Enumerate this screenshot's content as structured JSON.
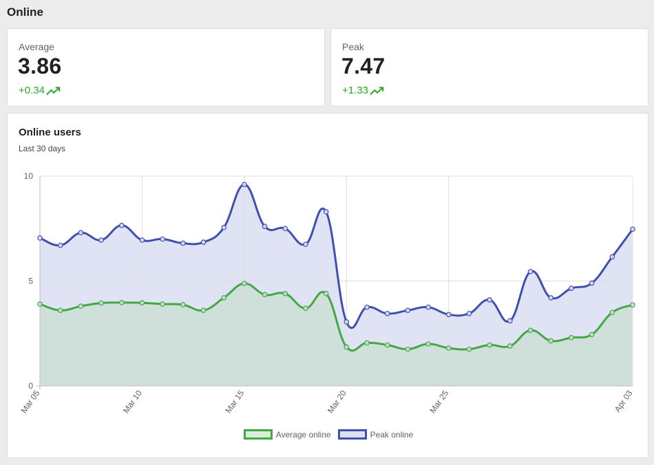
{
  "page": {
    "title": "Online"
  },
  "stats": [
    {
      "label": "Average",
      "value": "3.86",
      "delta": "+0.34",
      "trend_icon": "trending-up-icon"
    },
    {
      "label": "Peak",
      "value": "7.47",
      "delta": "+1.33",
      "trend_icon": "trending-up-icon"
    }
  ],
  "colors": {
    "average_line": "#43a843",
    "average_fill": "#cfdfd9",
    "peak_line": "#3f4fb0",
    "peak_fill": "#e0e3f3",
    "positive": "#27a827"
  },
  "chart": {
    "title": "Online users",
    "subtitle": "Last 30 days"
  },
  "chart_data": {
    "type": "area",
    "x_tick_labels": [
      "Mar 05",
      "Mar 10",
      "Mar 15",
      "Mar 20",
      "Mar 25",
      "Apr 03"
    ],
    "x_tick_index": [
      0,
      5,
      10,
      15,
      20,
      29
    ],
    "x": [
      "Mar 05",
      "Mar 06",
      "Mar 07",
      "Mar 08",
      "Mar 09",
      "Mar 10",
      "Mar 11",
      "Mar 12",
      "Mar 13",
      "Mar 14",
      "Mar 15",
      "Mar 16",
      "Mar 17",
      "Mar 18",
      "Mar 19",
      "Mar 20",
      "Mar 21",
      "Mar 22",
      "Mar 23",
      "Mar 24",
      "Mar 25",
      "Mar 26",
      "Mar 27",
      "Mar 28",
      "Mar 29",
      "Mar 30",
      "Mar 31",
      "Apr 01",
      "Apr 02",
      "Apr 03"
    ],
    "ylim": [
      0,
      10
    ],
    "y_ticks": [
      0,
      5,
      10
    ],
    "grid": true,
    "legend": "bottom",
    "series": [
      {
        "name": "Average online",
        "values": [
          3.9,
          3.6,
          3.8,
          3.95,
          3.97,
          3.96,
          3.9,
          3.87,
          3.6,
          4.2,
          4.88,
          4.35,
          4.4,
          3.7,
          4.4,
          1.85,
          2.05,
          1.95,
          1.75,
          2.0,
          1.8,
          1.75,
          1.95,
          1.9,
          2.65,
          2.15,
          2.3,
          2.45,
          3.5,
          3.86
        ]
      },
      {
        "name": "Peak online",
        "values": [
          7.05,
          6.7,
          7.3,
          6.95,
          7.65,
          6.95,
          7.0,
          6.8,
          6.85,
          7.55,
          9.6,
          7.6,
          7.5,
          6.75,
          8.3,
          3.05,
          3.75,
          3.45,
          3.6,
          3.75,
          3.4,
          3.45,
          4.1,
          3.1,
          5.45,
          4.2,
          4.65,
          4.9,
          6.15,
          7.47
        ]
      }
    ]
  }
}
